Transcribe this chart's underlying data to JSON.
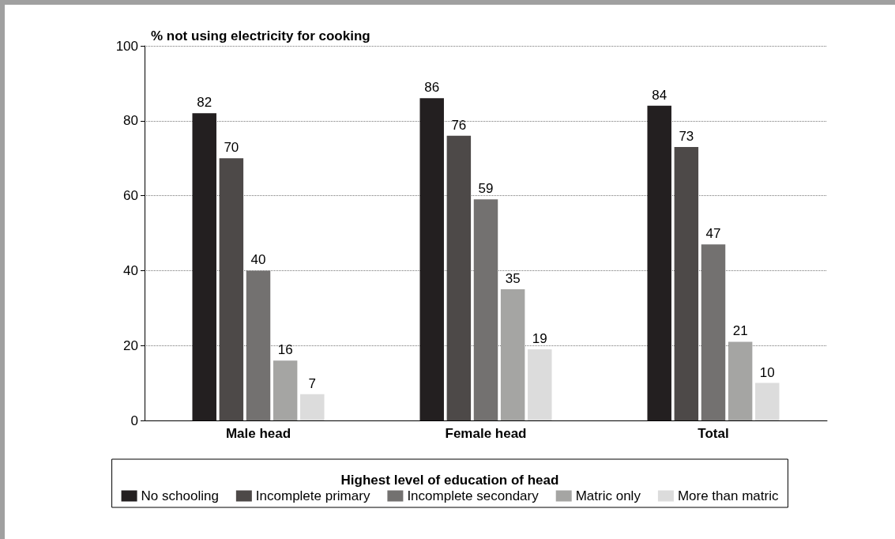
{
  "chart_data": {
    "type": "bar",
    "ylabel": "% not using electricity for cooking",
    "legend_title": "Highest level of education of head",
    "categories": [
      "Male head",
      "Female head",
      "Total"
    ],
    "series": [
      {
        "name": "No schooling",
        "color": "#231f20",
        "values": [
          82,
          86,
          84
        ]
      },
      {
        "name": "Incomplete primary",
        "color": "#4d4948",
        "values": [
          70,
          76,
          73
        ]
      },
      {
        "name": "Incomplete secondary",
        "color": "#737170",
        "values": [
          40,
          59,
          47
        ]
      },
      {
        "name": "Matric only",
        "color": "#a5a5a3",
        "values": [
          16,
          35,
          21
        ]
      },
      {
        "name": "More than matric",
        "color": "#dcdcdc",
        "values": [
          7,
          19,
          10
        ]
      }
    ],
    "ylim": [
      0,
      100
    ],
    "yticks": [
      0,
      20,
      40,
      60,
      80,
      100
    ],
    "grid": "y",
    "legend": "bottom",
    "data_labels": true
  }
}
